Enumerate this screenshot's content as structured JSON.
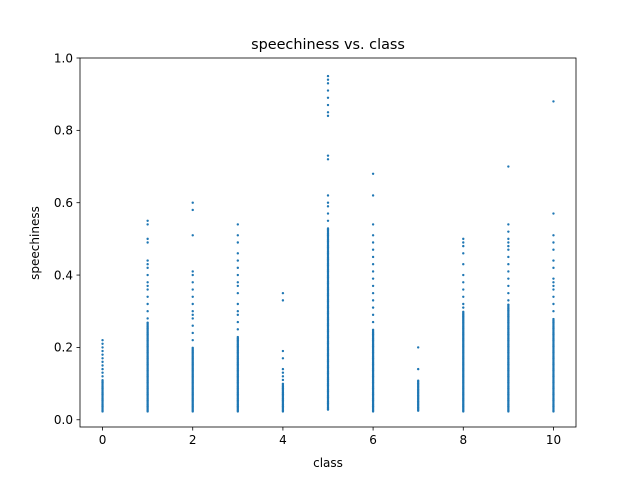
{
  "chart_data": {
    "type": "scatter",
    "title": "speechiness vs. class",
    "xlabel": "class",
    "ylabel": "speechiness",
    "xlim": [
      -0.5,
      10.5
    ],
    "ylim": [
      -0.02,
      1.0
    ],
    "xticks": [
      0,
      2,
      4,
      6,
      8,
      10
    ],
    "xtick_labels": [
      "0",
      "2",
      "4",
      "6",
      "8",
      "10"
    ],
    "yticks": [
      0.0,
      0.2,
      0.4,
      0.6,
      0.8,
      1.0
    ],
    "ytick_labels": [
      "0.0",
      "0.2",
      "0.4",
      "0.6",
      "0.8",
      "1.0"
    ],
    "grid": false,
    "legend": "none",
    "marker_color": "#1f77b4",
    "series": [
      {
        "classes": [
          {
            "x": 0,
            "dense_range": [
              0.023,
              0.11
            ],
            "points": [
              0.12,
              0.13,
              0.14,
              0.15,
              0.16,
              0.17,
              0.18,
              0.19,
              0.2,
              0.21,
              0.22
            ]
          },
          {
            "x": 1,
            "dense_range": [
              0.023,
              0.27
            ],
            "points": [
              0.28,
              0.3,
              0.32,
              0.34,
              0.36,
              0.37,
              0.38,
              0.4,
              0.42,
              0.43,
              0.44,
              0.49,
              0.5,
              0.54,
              0.55
            ]
          },
          {
            "x": 2,
            "dense_range": [
              0.023,
              0.2
            ],
            "points": [
              0.22,
              0.24,
              0.26,
              0.28,
              0.29,
              0.3,
              0.32,
              0.34,
              0.36,
              0.38,
              0.4,
              0.41,
              0.51,
              0.58,
              0.6
            ]
          },
          {
            "x": 3,
            "dense_range": [
              0.023,
              0.23
            ],
            "points": [
              0.25,
              0.27,
              0.29,
              0.3,
              0.32,
              0.35,
              0.37,
              0.38,
              0.4,
              0.42,
              0.44,
              0.46,
              0.49,
              0.51,
              0.54
            ]
          },
          {
            "x": 4,
            "dense_range": [
              0.023,
              0.1
            ],
            "points": [
              0.11,
              0.12,
              0.13,
              0.14,
              0.17,
              0.19,
              0.33,
              0.35
            ]
          },
          {
            "x": 5,
            "dense_range": [
              0.028,
              0.53
            ],
            "points": [
              0.55,
              0.57,
              0.59,
              0.6,
              0.62,
              0.72,
              0.73,
              0.84,
              0.85,
              0.87,
              0.89,
              0.91,
              0.93,
              0.94,
              0.95
            ]
          },
          {
            "x": 6,
            "dense_range": [
              0.023,
              0.25
            ],
            "points": [
              0.27,
              0.29,
              0.31,
              0.33,
              0.35,
              0.37,
              0.39,
              0.41,
              0.43,
              0.45,
              0.47,
              0.49,
              0.51,
              0.54,
              0.62,
              0.68
            ]
          },
          {
            "x": 7,
            "dense_range": [
              0.025,
              0.11
            ],
            "points": [
              0.14,
              0.2
            ]
          },
          {
            "x": 8,
            "dense_range": [
              0.023,
              0.3
            ],
            "points": [
              0.31,
              0.32,
              0.34,
              0.36,
              0.38,
              0.4,
              0.43,
              0.46,
              0.48,
              0.49,
              0.5
            ]
          },
          {
            "x": 9,
            "dense_range": [
              0.023,
              0.32
            ],
            "points": [
              0.33,
              0.35,
              0.37,
              0.39,
              0.41,
              0.43,
              0.45,
              0.47,
              0.48,
              0.49,
              0.5,
              0.52,
              0.54,
              0.7
            ]
          },
          {
            "x": 10,
            "dense_range": [
              0.023,
              0.28
            ],
            "points": [
              0.3,
              0.32,
              0.34,
              0.36,
              0.37,
              0.38,
              0.39,
              0.42,
              0.44,
              0.47,
              0.49,
              0.51,
              0.57,
              0.88
            ]
          }
        ]
      }
    ]
  }
}
